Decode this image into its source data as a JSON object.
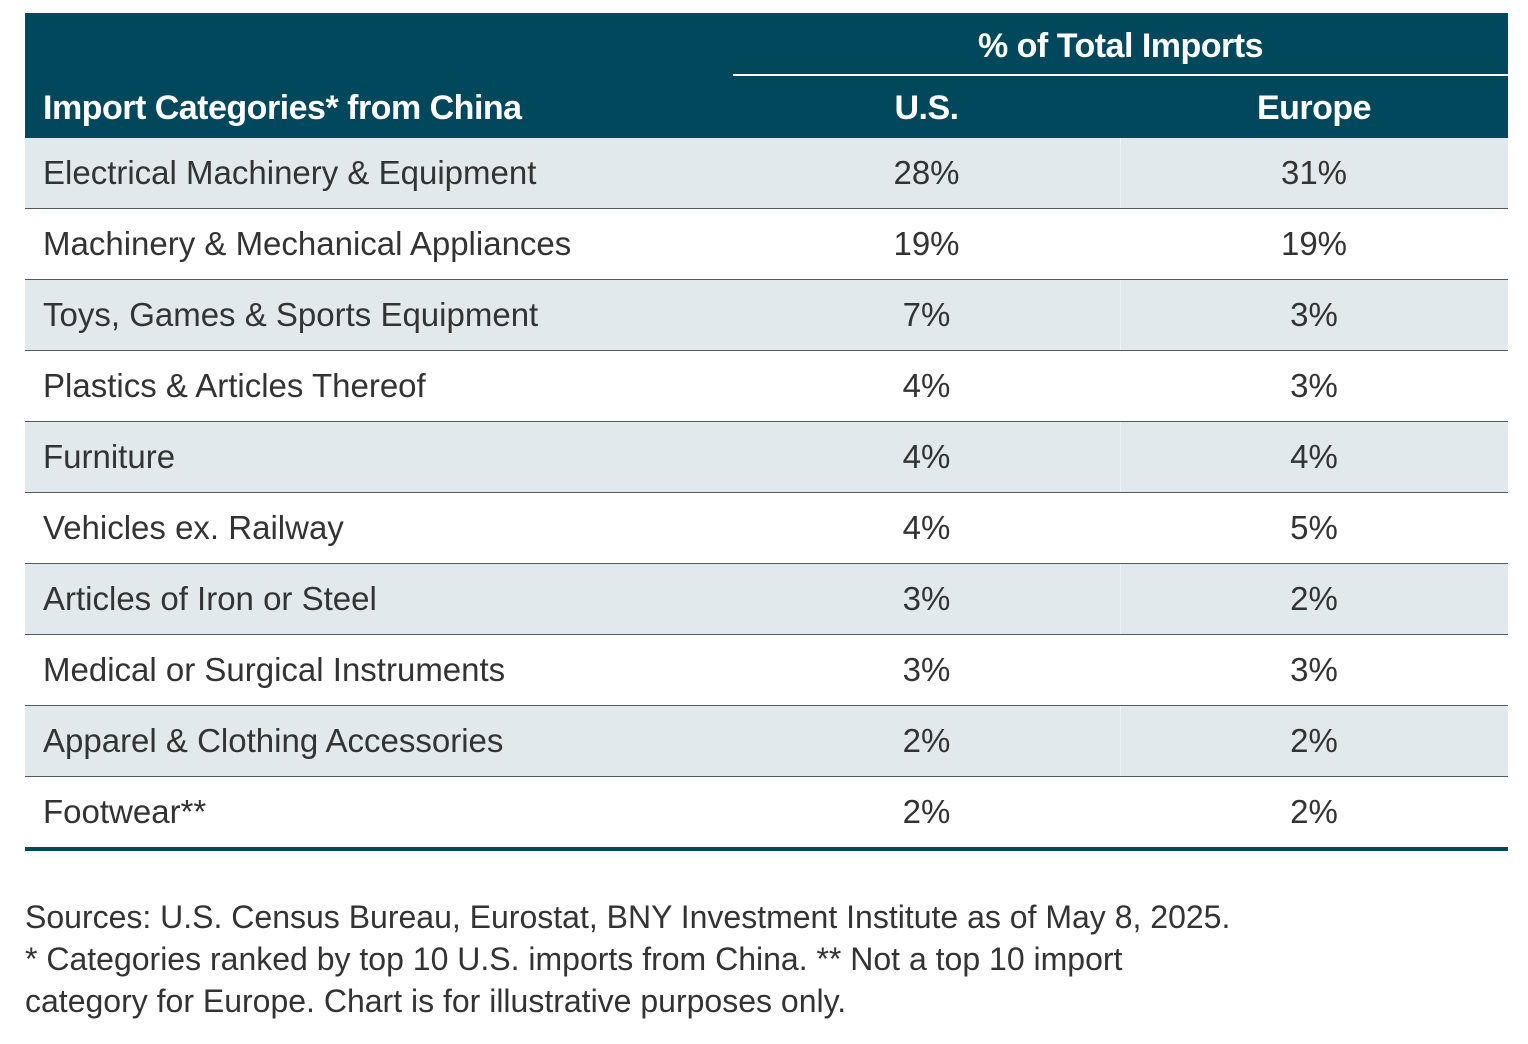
{
  "chart_data": {
    "type": "table",
    "title": "% of Total Imports",
    "columns": [
      "Import Categories* from China",
      "U.S.",
      "Europe"
    ],
    "column_group": "% of Total Imports",
    "rows": [
      {
        "category": "Electrical Machinery & Equipment",
        "us": "28%",
        "europe": "31%"
      },
      {
        "category": "Machinery & Mechanical Appliances",
        "us": "19%",
        "europe": "19%"
      },
      {
        "category": "Toys, Games & Sports Equipment",
        "us": "7%",
        "europe": "3%"
      },
      {
        "category": "Plastics & Articles Thereof",
        "us": "4%",
        "europe": "3%"
      },
      {
        "category": "Furniture",
        "us": "4%",
        "europe": "4%"
      },
      {
        "category": "Vehicles ex. Railway",
        "us": "4%",
        "europe": "5%"
      },
      {
        "category": "Articles of Iron or Steel",
        "us": "3%",
        "europe": "2%"
      },
      {
        "category": "Medical or Surgical Instruments",
        "us": "3%",
        "europe": "3%"
      },
      {
        "category": "Apparel & Clothing Accessories",
        "us": "2%",
        "europe": "2%"
      },
      {
        "category": "Footwear**",
        "us": "2%",
        "europe": "2%"
      }
    ],
    "series": [
      {
        "name": "U.S.",
        "values": [
          28,
          19,
          7,
          4,
          4,
          4,
          3,
          3,
          2,
          2
        ]
      },
      {
        "name": "Europe",
        "values": [
          31,
          19,
          3,
          3,
          4,
          5,
          2,
          3,
          2,
          2
        ]
      }
    ],
    "categories": [
      "Electrical Machinery & Equipment",
      "Machinery & Mechanical Appliances",
      "Toys, Games & Sports Equipment",
      "Plastics & Articles Thereof",
      "Furniture",
      "Vehicles ex. Railway",
      "Articles of Iron or Steel",
      "Medical or Surgical Instruments",
      "Apparel & Clothing Accessories",
      "Footwear**"
    ],
    "unit": "%"
  },
  "header": {
    "group_label": "% of Total Imports",
    "category_label": "Import Categories* from China",
    "us_label": "U.S.",
    "europe_label": "Europe"
  },
  "notes": [
    "Sources: U.S. Census Bureau, Eurostat, BNY Investment Institute as of May 8, 2025.",
    "* Categories ranked by top 10 U.S. imports from China. ** Not a top 10 import",
    "category for Europe. Chart is for illustrative purposes only."
  ],
  "colors": {
    "header_bg": "#02485C",
    "row_shade": "#E1E9EC",
    "text": "#333333"
  }
}
